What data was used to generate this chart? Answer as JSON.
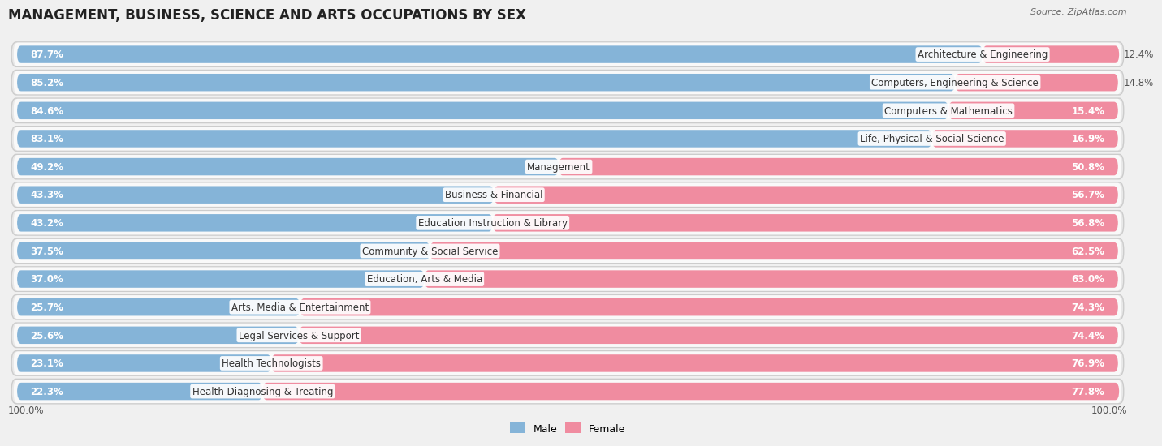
{
  "title": "MANAGEMENT, BUSINESS, SCIENCE AND ARTS OCCUPATIONS BY SEX",
  "source": "Source: ZipAtlas.com",
  "categories": [
    "Architecture & Engineering",
    "Computers, Engineering & Science",
    "Computers & Mathematics",
    "Life, Physical & Social Science",
    "Management",
    "Business & Financial",
    "Education Instruction & Library",
    "Community & Social Service",
    "Education, Arts & Media",
    "Arts, Media & Entertainment",
    "Legal Services & Support",
    "Health Technologists",
    "Health Diagnosing & Treating"
  ],
  "male_pct": [
    87.7,
    85.2,
    84.6,
    83.1,
    49.2,
    43.3,
    43.2,
    37.5,
    37.0,
    25.7,
    25.6,
    23.1,
    22.3
  ],
  "female_pct": [
    12.4,
    14.8,
    15.4,
    16.9,
    50.8,
    56.7,
    56.8,
    62.5,
    63.0,
    74.3,
    74.4,
    76.9,
    77.8
  ],
  "male_color": "#85b4d8",
  "female_color": "#f08ca0",
  "bg_color": "#f0f0f0",
  "row_bg": "#e8e8e8",
  "row_inner_bg": "#f9f9f9",
  "title_fontsize": 12,
  "source_fontsize": 8,
  "label_fontsize": 8.5,
  "bar_label_fontsize": 8.5,
  "bar_label_inside_threshold": 15
}
